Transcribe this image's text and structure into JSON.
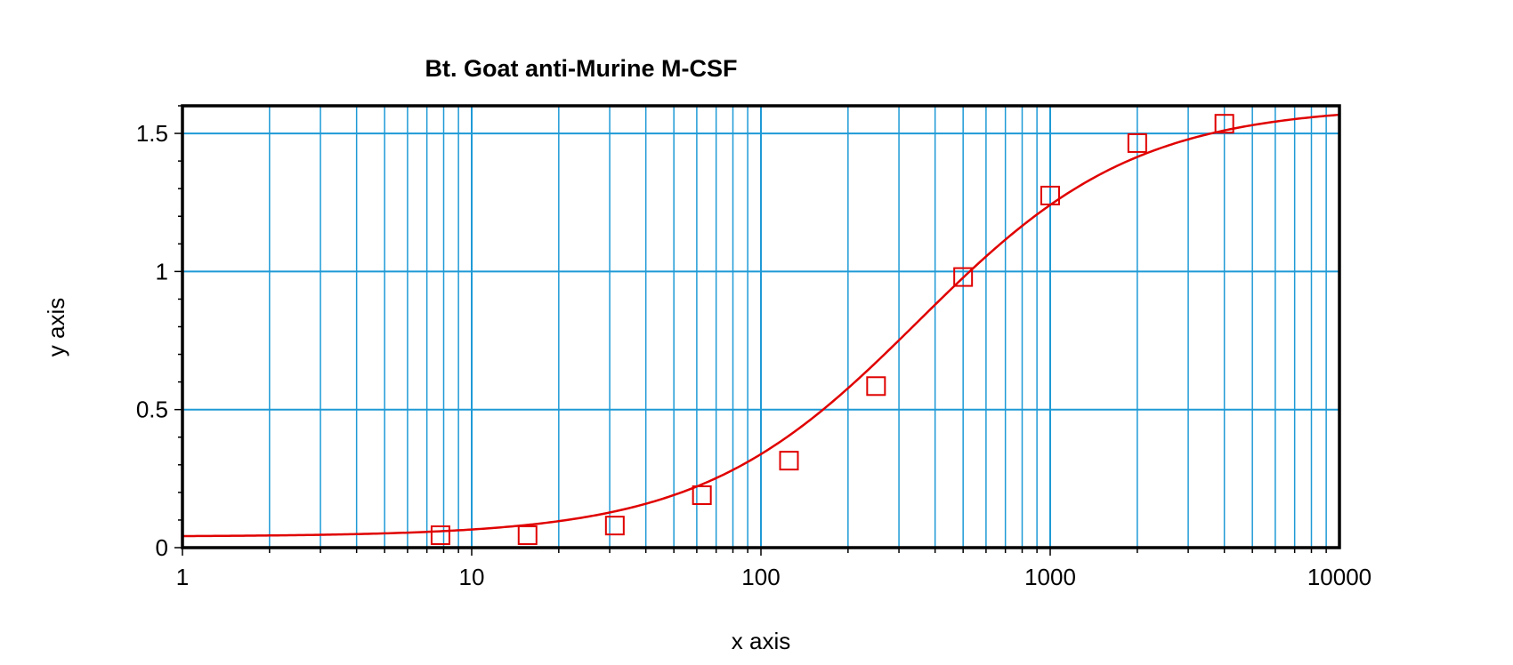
{
  "chart_data": {
    "type": "scatter",
    "title": "Bt. Goat anti-Murine M-CSF",
    "xlabel": "x axis",
    "ylabel": "y axis",
    "x_scale": "log",
    "xlim": [
      1,
      10000
    ],
    "ylim": [
      0,
      1.6
    ],
    "x_ticks": [
      1,
      10,
      100,
      1000,
      10000
    ],
    "x_tick_labels": [
      "1",
      "10",
      "100",
      "1000",
      "10000"
    ],
    "y_ticks": [
      0,
      0.5,
      1,
      1.5
    ],
    "y_tick_labels": [
      "0",
      "0.5",
      "1",
      "1.5"
    ],
    "grid": true,
    "legend": "none",
    "series": [
      {
        "marker": "square",
        "color": "#e00000",
        "x": [
          7.8,
          15.6,
          31.25,
          62.5,
          125,
          250,
          500,
          1000,
          2000,
          4000
        ],
        "y": [
          0.045,
          0.045,
          0.08,
          0.19,
          0.315,
          0.585,
          0.98,
          1.275,
          1.465,
          1.535
        ]
      }
    ],
    "fit_curve": {
      "type": "4PL",
      "color": "#e00000",
      "bottom": 0.04,
      "top": 1.6,
      "ec50": 350,
      "hill": 1.15
    },
    "colors": {
      "grid": "#1e9ad6",
      "frame": "#000000",
      "data": "#e00000"
    }
  }
}
